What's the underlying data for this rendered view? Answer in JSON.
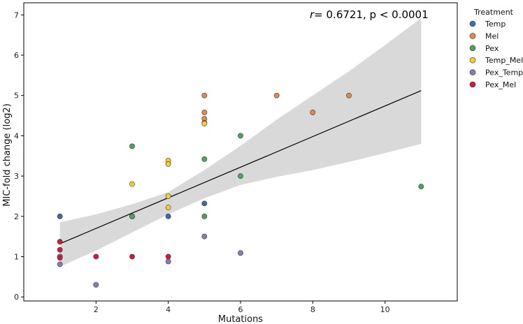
{
  "chart_data": {
    "type": "scatter",
    "title": "",
    "xlabel": "Mutations",
    "ylabel": "MIC-fold change (log2)",
    "xlim": [
      0.0,
      12.0
    ],
    "ylim": [
      -0.1,
      7.3
    ],
    "xticks": [
      2,
      4,
      6,
      8,
      10
    ],
    "yticks": [
      0,
      1,
      2,
      3,
      4,
      5,
      6,
      7
    ],
    "grid": false,
    "annotation": {
      "r_label": "r",
      "rest": "= 0.6721, p < 0.0001"
    },
    "legend": {
      "title": "Treatment",
      "position": "outside-top-right"
    },
    "regression": {
      "x": [
        1,
        11
      ],
      "y": [
        1.32,
        5.12
      ]
    },
    "confidence_band": {
      "x": [
        1,
        2,
        3,
        4,
        5,
        6,
        7,
        8,
        9,
        10,
        11
      ],
      "lower": [
        0.75,
        1.15,
        1.6,
        2.05,
        2.45,
        2.78,
        2.98,
        3.15,
        3.35,
        3.57,
        3.8
      ],
      "upper": [
        1.85,
        2.05,
        2.3,
        2.6,
        3.15,
        3.75,
        4.4,
        5.0,
        5.6,
        6.25,
        6.92
      ]
    },
    "series": [
      {
        "name": "Temp",
        "color": "#3a6db5",
        "points": [
          [
            1,
            2.0
          ],
          [
            1,
            1.0
          ],
          [
            3,
            2.0
          ],
          [
            4,
            2.0
          ],
          [
            5,
            2.32
          ]
        ]
      },
      {
        "name": "Mel",
        "color": "#e08a4f",
        "points": [
          [
            5,
            5.0
          ],
          [
            5,
            4.58
          ],
          [
            5,
            4.42
          ],
          [
            5,
            4.32
          ],
          [
            7,
            5.0
          ],
          [
            8,
            4.58
          ],
          [
            9,
            5.0
          ]
        ]
      },
      {
        "name": "Pex",
        "color": "#4aa564",
        "points": [
          [
            3,
            3.74
          ],
          [
            3,
            2.0
          ],
          [
            5,
            3.42
          ],
          [
            5,
            2.0
          ],
          [
            6,
            4.0
          ],
          [
            6,
            3.0
          ],
          [
            11,
            2.74
          ]
        ]
      },
      {
        "name": "Temp_Mel",
        "color": "#f5d02a",
        "points": [
          [
            3,
            2.8
          ],
          [
            4,
            3.38
          ],
          [
            4,
            3.3
          ],
          [
            4,
            2.5
          ],
          [
            4,
            2.22
          ],
          [
            5,
            4.3
          ]
        ]
      },
      {
        "name": "Pex_Temp",
        "color": "#8a7bb5",
        "points": [
          [
            1,
            1.0
          ],
          [
            1,
            0.81
          ],
          [
            2,
            0.3
          ],
          [
            4,
            0.88
          ],
          [
            5,
            1.5
          ],
          [
            6,
            1.09
          ]
        ]
      },
      {
        "name": "Pex_Mel",
        "color": "#d21a3f",
        "points": [
          [
            1,
            1.37
          ],
          [
            1,
            1.17
          ],
          [
            1,
            0.97
          ],
          [
            2,
            1.0
          ],
          [
            3,
            1.0
          ],
          [
            4,
            1.0
          ]
        ]
      }
    ]
  }
}
